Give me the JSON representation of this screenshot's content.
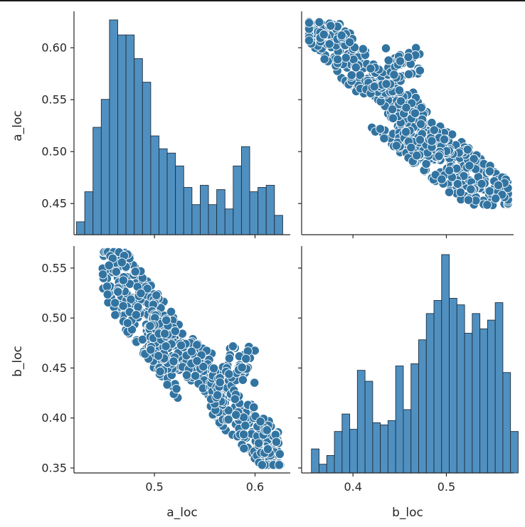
{
  "colors": {
    "fill": "#3274a1",
    "hist_fill": "#5090c0",
    "edge": "#1f2f3f",
    "marker_edge": "#ffffff"
  },
  "chart_data": {
    "type": "pairplot",
    "variables": [
      "a_loc",
      "b_loc"
    ],
    "axes": {
      "a_loc": {
        "range": [
          0.42,
          0.635
        ],
        "ticks": [
          0.45,
          0.5,
          0.55,
          0.6
        ],
        "tick_labels_y": [
          "0.45",
          "0.50",
          "0.55",
          "0.60"
        ],
        "tick_labels_x": [
          "0.5",
          "0.6"
        ],
        "x_ticks": [
          0.5,
          0.6
        ]
      },
      "b_loc": {
        "range": [
          0.345,
          0.572
        ],
        "ticks": [
          0.35,
          0.4,
          0.45,
          0.5,
          0.55
        ],
        "tick_labels_y": [
          "0.35",
          "0.40",
          "0.45",
          "0.50",
          "0.55"
        ],
        "tick_labels_x": [
          "0.4",
          "0.5"
        ],
        "x_ticks": [
          0.4,
          0.5
        ]
      }
    },
    "charts": [
      {
        "panel": "a_loc-hist",
        "type": "histogram",
        "bin_start": 0.4225,
        "bin_width": 0.0082,
        "relative_heights": [
          0.06,
          0.2,
          0.5,
          0.63,
          1.0,
          0.93,
          0.93,
          0.82,
          0.71,
          0.46,
          0.4,
          0.38,
          0.32,
          0.22,
          0.14,
          0.23,
          0.14,
          0.21,
          0.12,
          0.32,
          0.41,
          0.2,
          0.22,
          0.23,
          0.09
        ]
      },
      {
        "panel": "b_loc-hist",
        "type": "histogram",
        "bin_start": 0.3555,
        "bin_width": 0.0082,
        "relative_heights": [
          0.11,
          0.04,
          0.08,
          0.19,
          0.27,
          0.2,
          0.47,
          0.42,
          0.23,
          0.22,
          0.24,
          0.49,
          0.29,
          0.5,
          0.61,
          0.73,
          0.79,
          1.0,
          0.8,
          0.77,
          0.64,
          0.73,
          0.66,
          0.7,
          0.78,
          0.46,
          0.19
        ]
      },
      {
        "panel": "scatter",
        "type": "scatter",
        "description_clusters_a_vs_b": [
          {
            "a": [
              0.448,
              0.525
            ],
            "b": [
              0.455,
              0.56
            ]
          },
          {
            "a": [
              0.495,
              0.575
            ],
            "b": [
              0.43,
              0.49
            ]
          },
          {
            "a": [
              0.555,
              0.625
            ],
            "b": [
              0.36,
              0.43
            ]
          }
        ],
        "bridge_points": [
          [
            0.58,
            0.47
          ],
          [
            0.595,
            0.46
          ],
          [
            0.59,
            0.445
          ],
          [
            0.572,
            0.45
          ],
          [
            0.565,
            0.44
          ]
        ]
      }
    ]
  }
}
